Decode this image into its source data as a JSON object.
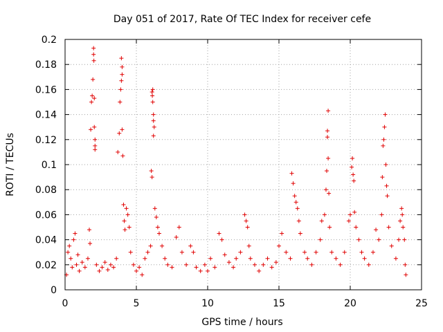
{
  "chart_data": {
    "type": "scatter",
    "title": "Day 051 of 2017, Rate Of TEC Index for receiver cefe",
    "xlabel": "GPS time / hours",
    "ylabel": "ROTI / TECUs",
    "xlim": [
      0,
      25
    ],
    "ylim": [
      0,
      0.2
    ],
    "xticks": [
      "0",
      "5",
      "10",
      "15",
      "20",
      "25"
    ],
    "yticks": [
      "0",
      "0.02",
      "0.04",
      "0.06",
      "0.08",
      "0.1",
      "0.12",
      "0.14",
      "0.16",
      "0.18",
      "0.2"
    ],
    "grid": true,
    "marker": "+",
    "color": "#e00000",
    "series": [
      {
        "points": [
          [
            0.1,
            0.012
          ],
          [
            0.2,
            0.03
          ],
          [
            0.3,
            0.035
          ],
          [
            0.4,
            0.025
          ],
          [
            0.5,
            0.018
          ],
          [
            0.6,
            0.04
          ],
          [
            0.7,
            0.045
          ],
          [
            0.8,
            0.02
          ],
          [
            0.9,
            0.028
          ],
          [
            1.0,
            0.015
          ],
          [
            1.2,
            0.022
          ],
          [
            1.4,
            0.018
          ],
          [
            1.6,
            0.025
          ],
          [
            1.7,
            0.048
          ],
          [
            1.75,
            0.037
          ],
          [
            1.8,
            0.128
          ],
          [
            1.85,
            0.15
          ],
          [
            1.9,
            0.155
          ],
          [
            1.95,
            0.168
          ],
          [
            2.0,
            0.193
          ],
          [
            2.0,
            0.188
          ],
          [
            2.02,
            0.183
          ],
          [
            2.05,
            0.153
          ],
          [
            2.05,
            0.13
          ],
          [
            2.1,
            0.12
          ],
          [
            2.1,
            0.115
          ],
          [
            2.1,
            0.112
          ],
          [
            2.2,
            0.02
          ],
          [
            2.4,
            0.015
          ],
          [
            2.6,
            0.018
          ],
          [
            2.8,
            0.022
          ],
          [
            3.0,
            0.016
          ],
          [
            3.2,
            0.02
          ],
          [
            3.4,
            0.018
          ],
          [
            3.6,
            0.025
          ],
          [
            3.7,
            0.11
          ],
          [
            3.8,
            0.125
          ],
          [
            3.85,
            0.15
          ],
          [
            3.9,
            0.16
          ],
          [
            3.95,
            0.167
          ],
          [
            3.95,
            0.185
          ],
          [
            4.0,
            0.178
          ],
          [
            4.0,
            0.172
          ],
          [
            4.0,
            0.128
          ],
          [
            4.05,
            0.107
          ],
          [
            4.1,
            0.068
          ],
          [
            4.15,
            0.055
          ],
          [
            4.2,
            0.048
          ],
          [
            4.3,
            0.065
          ],
          [
            4.4,
            0.06
          ],
          [
            4.5,
            0.05
          ],
          [
            4.6,
            0.03
          ],
          [
            4.8,
            0.02
          ],
          [
            5.0,
            0.015
          ],
          [
            5.2,
            0.018
          ],
          [
            5.4,
            0.012
          ],
          [
            5.6,
            0.025
          ],
          [
            5.8,
            0.03
          ],
          [
            6.0,
            0.035
          ],
          [
            6.05,
            0.095
          ],
          [
            6.1,
            0.09
          ],
          [
            6.1,
            0.158
          ],
          [
            6.12,
            0.155
          ],
          [
            6.15,
            0.15
          ],
          [
            6.15,
            0.16
          ],
          [
            6.2,
            0.14
          ],
          [
            6.2,
            0.135
          ],
          [
            6.2,
            0.123
          ],
          [
            6.25,
            0.13
          ],
          [
            6.3,
            0.065
          ],
          [
            6.4,
            0.058
          ],
          [
            6.5,
            0.05
          ],
          [
            6.6,
            0.045
          ],
          [
            6.8,
            0.035
          ],
          [
            7.0,
            0.025
          ],
          [
            7.2,
            0.02
          ],
          [
            7.5,
            0.018
          ],
          [
            7.8,
            0.042
          ],
          [
            8.0,
            0.05
          ],
          [
            8.2,
            0.03
          ],
          [
            8.5,
            0.02
          ],
          [
            8.8,
            0.035
          ],
          [
            9.0,
            0.03
          ],
          [
            9.2,
            0.018
          ],
          [
            9.5,
            0.015
          ],
          [
            9.8,
            0.02
          ],
          [
            10.0,
            0.015
          ],
          [
            10.2,
            0.025
          ],
          [
            10.5,
            0.018
          ],
          [
            10.8,
            0.045
          ],
          [
            11.0,
            0.04
          ],
          [
            11.2,
            0.028
          ],
          [
            11.5,
            0.022
          ],
          [
            11.8,
            0.018
          ],
          [
            12.0,
            0.025
          ],
          [
            12.3,
            0.03
          ],
          [
            12.6,
            0.06
          ],
          [
            12.7,
            0.055
          ],
          [
            12.8,
            0.05
          ],
          [
            12.9,
            0.035
          ],
          [
            13.0,
            0.025
          ],
          [
            13.3,
            0.02
          ],
          [
            13.6,
            0.015
          ],
          [
            13.9,
            0.02
          ],
          [
            14.2,
            0.025
          ],
          [
            14.5,
            0.018
          ],
          [
            14.8,
            0.022
          ],
          [
            15.0,
            0.035
          ],
          [
            15.2,
            0.045
          ],
          [
            15.5,
            0.03
          ],
          [
            15.8,
            0.025
          ],
          [
            15.9,
            0.093
          ],
          [
            16.0,
            0.085
          ],
          [
            16.1,
            0.075
          ],
          [
            16.2,
            0.07
          ],
          [
            16.3,
            0.065
          ],
          [
            16.4,
            0.055
          ],
          [
            16.5,
            0.045
          ],
          [
            16.8,
            0.03
          ],
          [
            17.0,
            0.025
          ],
          [
            17.3,
            0.02
          ],
          [
            17.6,
            0.03
          ],
          [
            17.9,
            0.04
          ],
          [
            18.0,
            0.055
          ],
          [
            18.2,
            0.06
          ],
          [
            18.3,
            0.08
          ],
          [
            18.35,
            0.095
          ],
          [
            18.4,
            0.122
          ],
          [
            18.4,
            0.127
          ],
          [
            18.45,
            0.143
          ],
          [
            18.45,
            0.105
          ],
          [
            18.5,
            0.077
          ],
          [
            18.55,
            0.05
          ],
          [
            18.7,
            0.03
          ],
          [
            19.0,
            0.025
          ],
          [
            19.3,
            0.02
          ],
          [
            19.6,
            0.03
          ],
          [
            19.9,
            0.055
          ],
          [
            20.0,
            0.06
          ],
          [
            20.1,
            0.098
          ],
          [
            20.15,
            0.105
          ],
          [
            20.2,
            0.092
          ],
          [
            20.25,
            0.087
          ],
          [
            20.3,
            0.062
          ],
          [
            20.4,
            0.05
          ],
          [
            20.6,
            0.04
          ],
          [
            20.8,
            0.03
          ],
          [
            21.0,
            0.025
          ],
          [
            21.3,
            0.02
          ],
          [
            21.6,
            0.03
          ],
          [
            21.8,
            0.048
          ],
          [
            22.0,
            0.04
          ],
          [
            22.2,
            0.06
          ],
          [
            22.25,
            0.09
          ],
          [
            22.3,
            0.115
          ],
          [
            22.35,
            0.12
          ],
          [
            22.4,
            0.13
          ],
          [
            22.45,
            0.14
          ],
          [
            22.5,
            0.1
          ],
          [
            22.55,
            0.083
          ],
          [
            22.6,
            0.075
          ],
          [
            22.7,
            0.05
          ],
          [
            22.9,
            0.035
          ],
          [
            23.2,
            0.025
          ],
          [
            23.4,
            0.04
          ],
          [
            23.5,
            0.055
          ],
          [
            23.6,
            0.065
          ],
          [
            23.65,
            0.06
          ],
          [
            23.7,
            0.05
          ],
          [
            23.8,
            0.04
          ],
          [
            23.85,
            0.02
          ],
          [
            23.9,
            0.012
          ]
        ]
      }
    ]
  }
}
